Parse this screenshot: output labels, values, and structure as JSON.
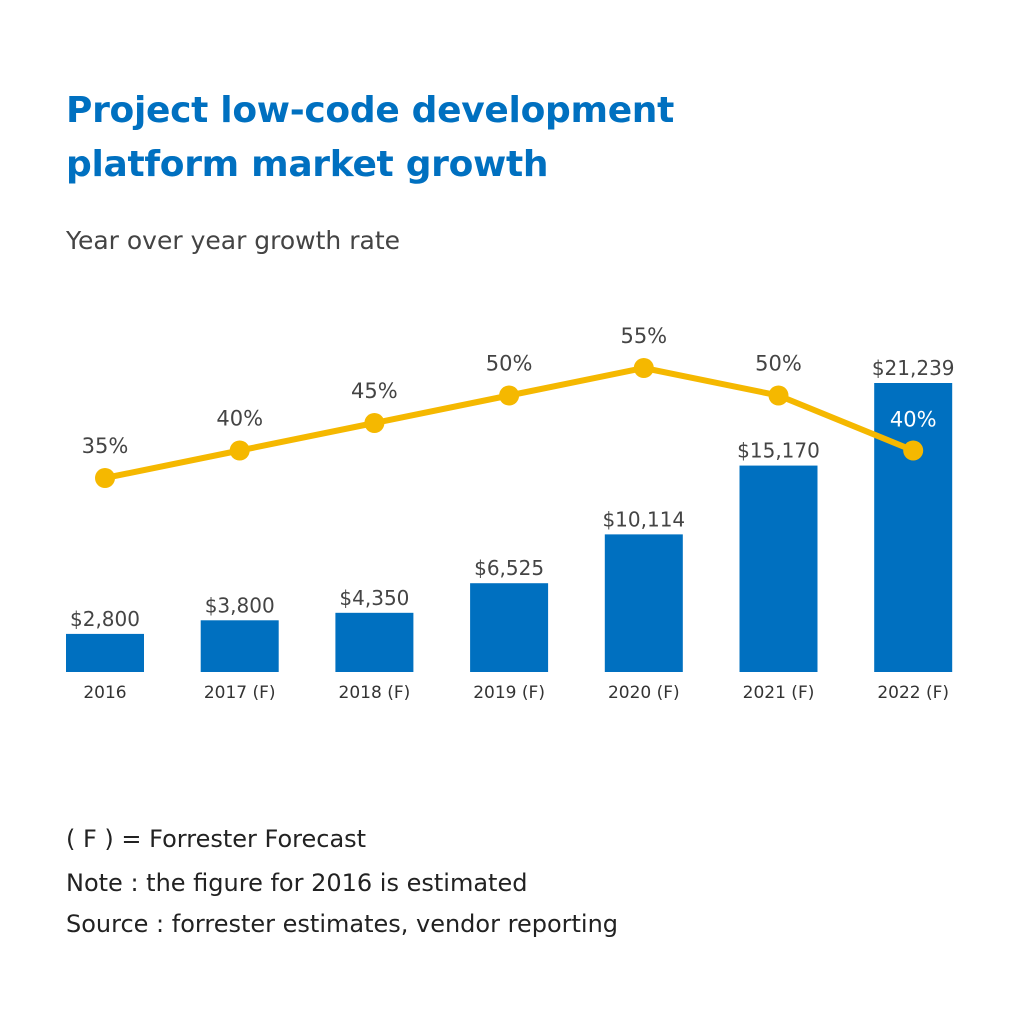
{
  "chart_data": {
    "type": "bar",
    "title": [
      "Project low-code development",
      "platform market growth"
    ],
    "subtitle": "Year over year growth rate",
    "categories": [
      "2016",
      "2017 (F)",
      "2018 (F)",
      "2019 (F)",
      "2020 (F)",
      "2021 (F)",
      "2022 (F)"
    ],
    "bar_values": [
      2800,
      3800,
      4350,
      6525,
      10114,
      15170,
      21239
    ],
    "bar_labels": [
      "$2,800",
      "$3,800",
      "$4,350",
      "$6,525",
      "$10,114",
      "$15,170",
      "$21,239"
    ],
    "line_values": [
      35,
      40,
      45,
      50,
      55,
      50,
      40
    ],
    "line_labels": [
      "35%",
      "40%",
      "45%",
      "50%",
      "55%",
      "50%",
      "40%"
    ],
    "bar_color": "#0070c0",
    "line_color": "#f5b800",
    "grid": false
  },
  "notes": [
    "( F ) = Forrester Forecast",
    "Note : the figure for 2016 is estimated",
    "Source : forrester estimates, vendor reporting"
  ]
}
